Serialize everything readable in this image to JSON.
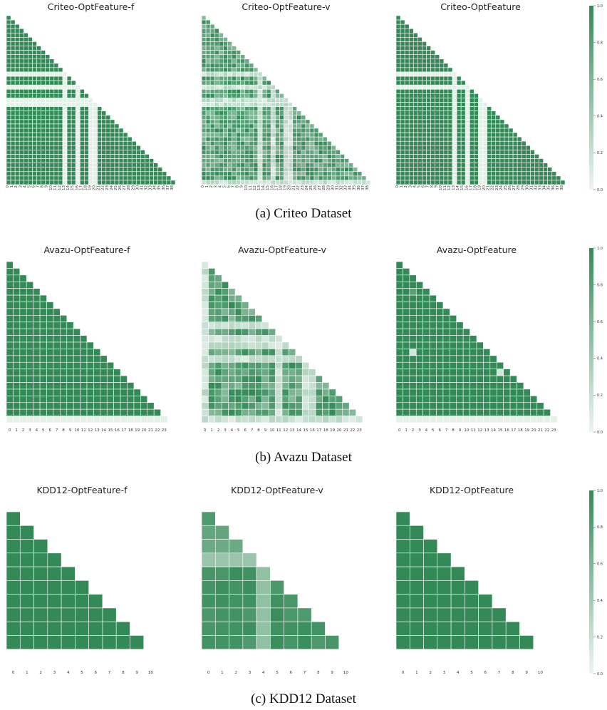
{
  "colors": {
    "high": "#338a57",
    "low": "#eef5f1",
    "cell_border": "#ffffff"
  },
  "captions": [
    "(a)  Criteo Dataset",
    "(b)  Avazu Dataset",
    "(c)  KDD12 Dataset"
  ],
  "colorbar_ticks": [
    "0.0",
    "0.2",
    "0.4",
    "0.6",
    "0.8",
    "1.0"
  ],
  "chart_data": [
    {
      "type": "heatmap",
      "title": "Criteo-OptFeature-f",
      "n": 39,
      "ticks": "0..38",
      "vmin": 0,
      "vmax": 1,
      "pattern": "lower-triangular, mostly 1.0; rows 13, 16, 19, 20 and columns 13, 16, 19, 20 ~0.05",
      "low_rows": [
        13,
        16,
        19,
        20
      ],
      "low_cols": [
        13,
        16,
        19,
        20
      ]
    },
    {
      "type": "heatmap",
      "title": "Criteo-OptFeature-v",
      "n": 39,
      "ticks": "0..38",
      "vmin": 0,
      "vmax": 1,
      "pattern": "lower-triangular, mixed values 0.2–1.0, low bands at rows 13, 16, 19, 20, 38 and columns 13, 16, 19, 20",
      "low_rows": [
        13,
        16,
        19,
        20,
        38
      ],
      "low_cols": [
        13,
        16,
        19,
        20
      ]
    },
    {
      "type": "heatmap",
      "title": "Criteo-OptFeature",
      "n": 39,
      "ticks": "0..38",
      "vmin": 0,
      "vmax": 1,
      "pattern": "lower-triangular, mostly 1.0; rows 13, 16 and columns 13, 16, 19, 20 ~0.05",
      "low_rows": [
        13,
        16
      ],
      "low_cols": [
        13,
        16,
        19,
        20
      ]
    },
    {
      "type": "heatmap",
      "title": "Avazu-OptFeature-f",
      "n": 24,
      "ticks": "0..23",
      "vmin": 0,
      "vmax": 1,
      "pattern": "lower-triangular, all 1.0 except last row (23) ~0.05",
      "low_rows": [
        23
      ],
      "low_cols": []
    },
    {
      "type": "heatmap",
      "title": "Avazu-OptFeature-v",
      "n": 24,
      "ticks": "0..23",
      "vmin": 0,
      "vmax": 1,
      "pattern": "lower-triangular, mixed; low rows 0, 9, 11, 12, 14, 23 and low columns 0, 11, 15, 16",
      "low_rows": [
        0,
        9,
        11,
        12,
        14,
        23
      ],
      "low_cols": [
        0,
        11,
        15,
        16
      ]
    },
    {
      "type": "heatmap",
      "title": "Avazu-OptFeature",
      "n": 24,
      "ticks": "0..23",
      "vmin": 0,
      "vmax": 1,
      "pattern": "lower-triangular, mostly 1.0, last row ~0.05 with a few isolated lower cells",
      "low_rows": [
        23
      ],
      "low_cols": []
    },
    {
      "type": "heatmap",
      "title": "KDD12-OptFeature-f",
      "n": 11,
      "ticks": "0..10",
      "vmin": 0,
      "vmax": 1,
      "pattern": "lower-triangular, all 1.0, last row empty",
      "low_rows": [],
      "low_cols": []
    },
    {
      "type": "heatmap",
      "title": "KDD12-OptFeature-v",
      "n": 11,
      "ticks": "0..10",
      "vmin": 0,
      "vmax": 1,
      "pattern": "lower-triangular; row 1 ~0.75, row 2 ~0.7, row 3 ~0.45, column 4 ~0.5, rest 0.85–1.0",
      "low_rows": [],
      "low_cols": []
    },
    {
      "type": "heatmap",
      "title": "KDD12-OptFeature",
      "n": 11,
      "ticks": "0..10",
      "vmin": 0,
      "vmax": 1,
      "pattern": "lower-triangular, all 1.0, last row empty",
      "low_rows": [],
      "low_cols": []
    }
  ]
}
